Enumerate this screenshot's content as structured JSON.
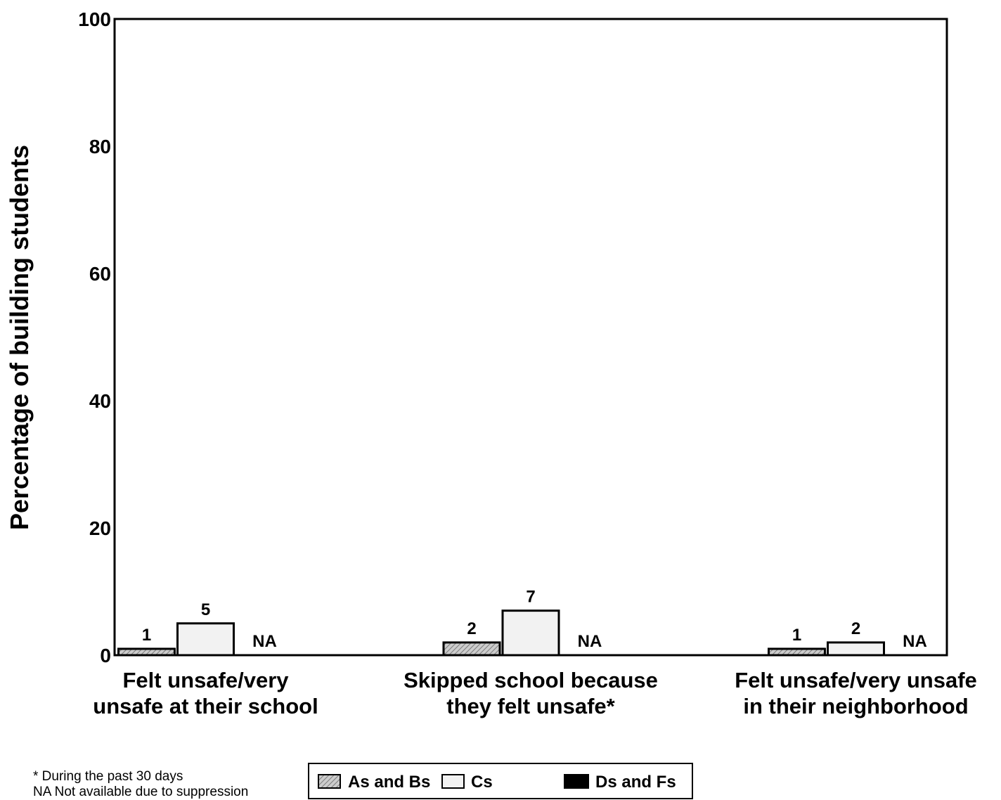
{
  "chart_data": {
    "type": "bar",
    "ylabel": "Percentage of building students",
    "ylim": [
      0,
      100
    ],
    "yticks": [
      0,
      20,
      40,
      60,
      80,
      100
    ],
    "grid": false,
    "legend": "bottom-center",
    "categories": [
      [
        "Felt unsafe/very",
        "unsafe at their school"
      ],
      [
        "Skipped school because",
        "they felt unsafe*"
      ],
      [
        "Felt unsafe/very unsafe",
        "in their neighborhood"
      ]
    ],
    "series": [
      {
        "name": "As and Bs",
        "values": [
          1,
          2,
          1
        ],
        "color": "#cccccc",
        "hatch": true
      },
      {
        "name": "Cs",
        "values": [
          5,
          7,
          2
        ],
        "color": "#f2f2f2",
        "hatch": false
      },
      {
        "name": "Ds and Fs",
        "values": [
          null,
          null,
          null
        ],
        "labels": [
          "NA",
          "NA",
          "NA"
        ],
        "color": "#000000",
        "hatch": false
      }
    ]
  },
  "footnotes": [
    "* During the past 30 days",
    "NA Not available due to suppression"
  ]
}
